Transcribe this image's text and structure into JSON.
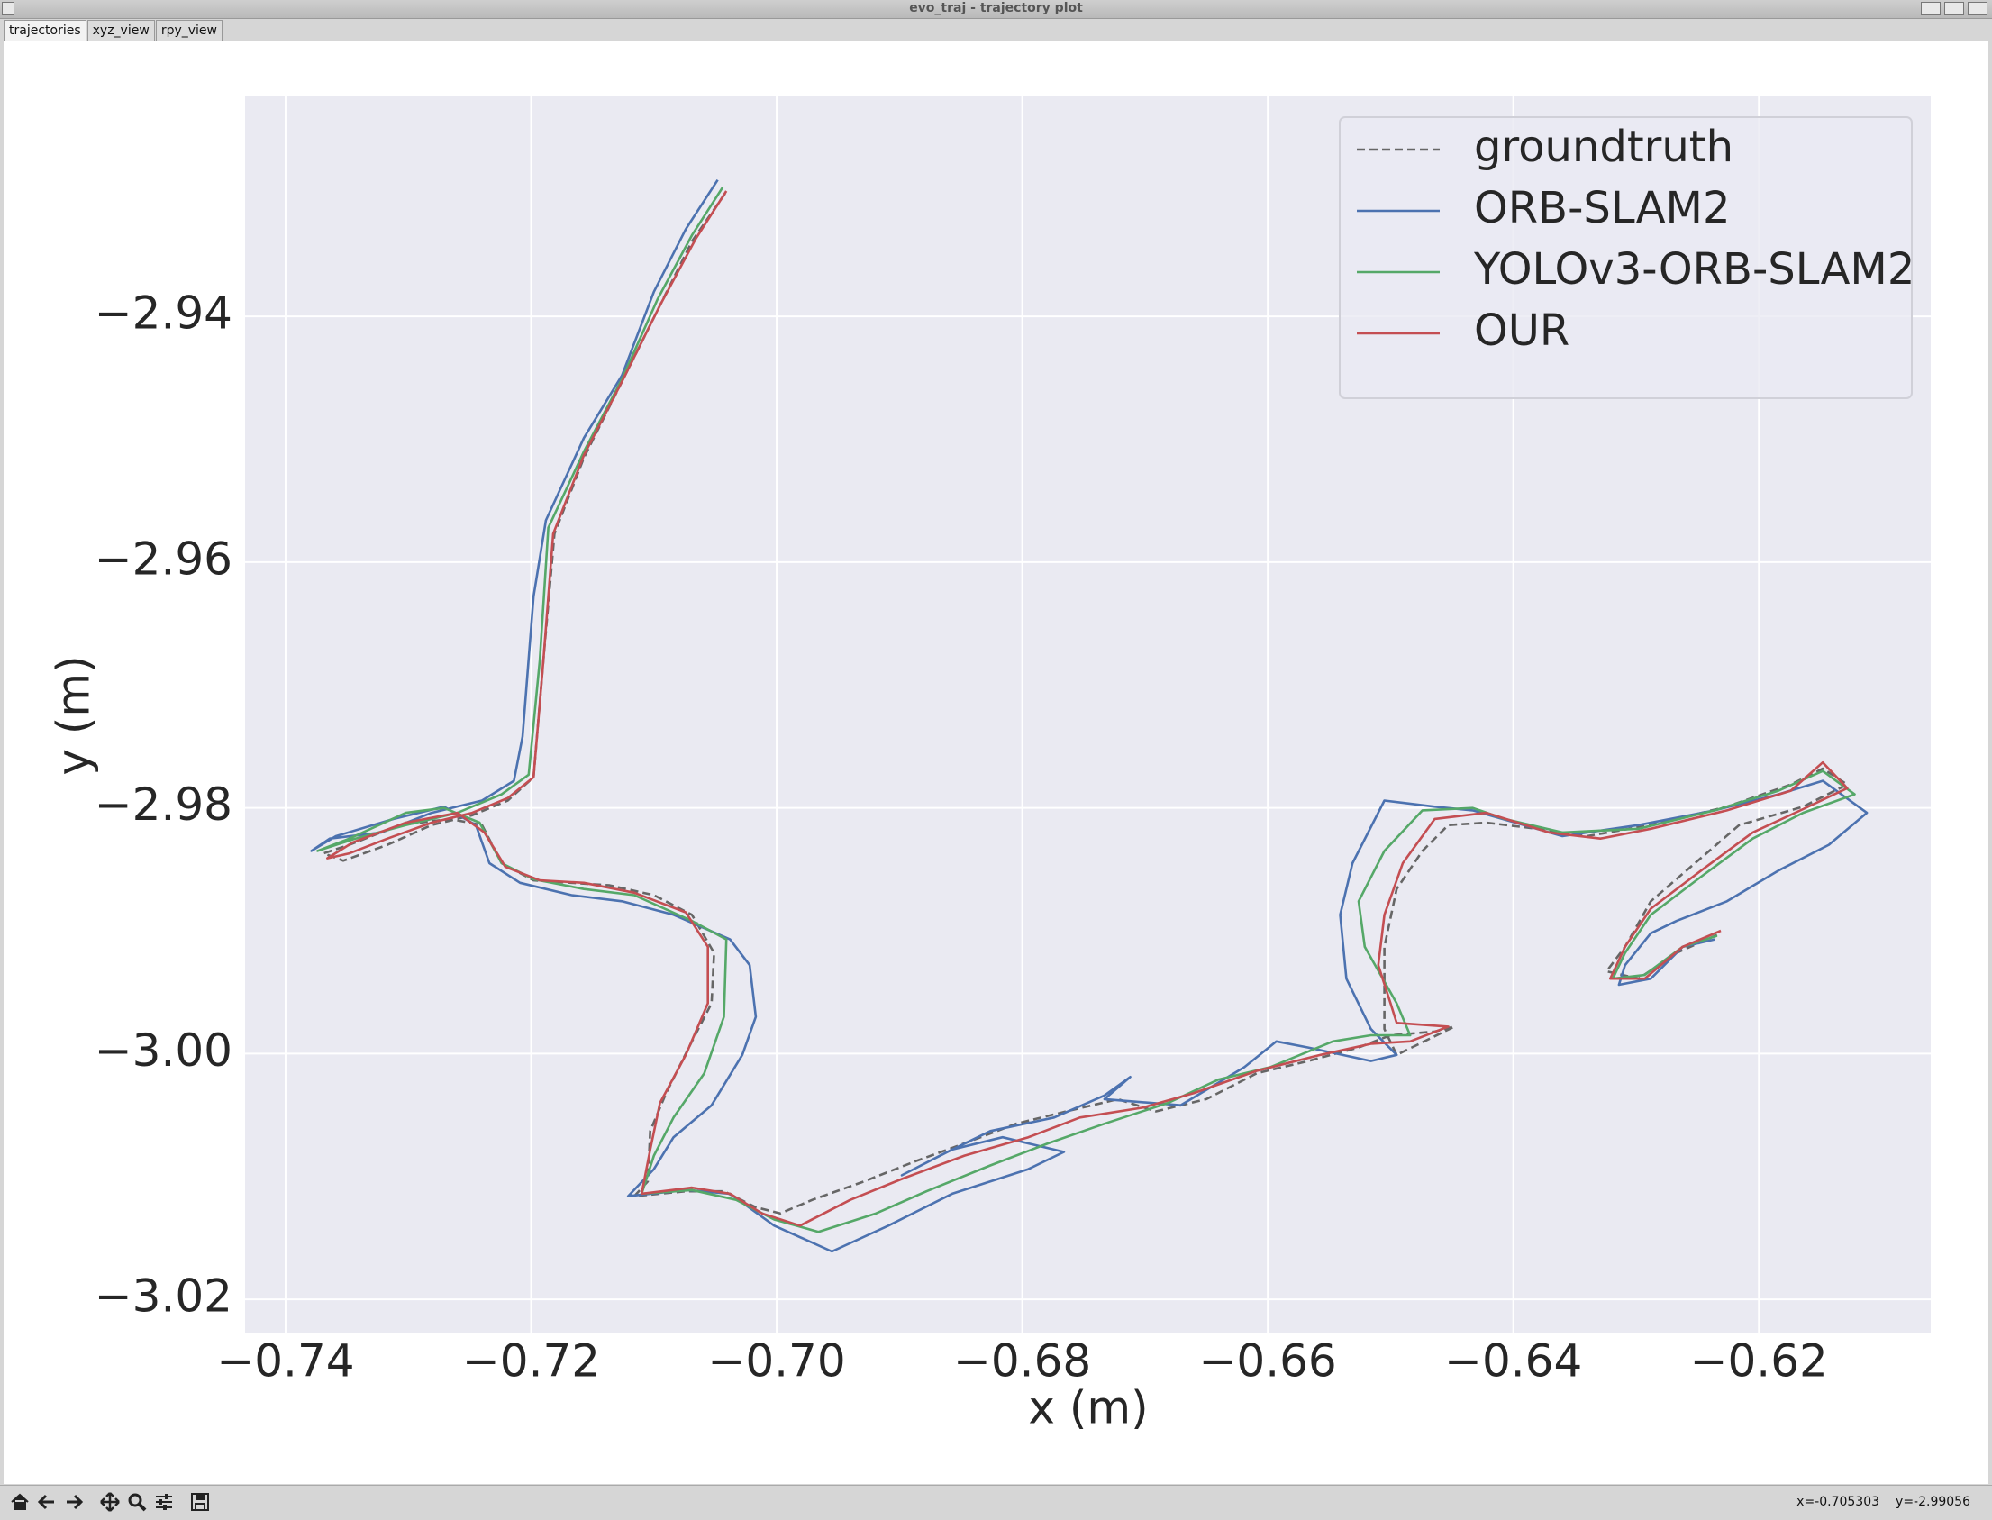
{
  "window": {
    "title": "evo_traj - trajectory plot",
    "tabs": [
      "trajectories",
      "xyz_view",
      "rpy_view"
    ],
    "status": [
      "x=-0.705303",
      "y=-2.99056"
    ]
  },
  "chart_data": {
    "type": "line",
    "xlabel": "x (m)",
    "ylabel": "y (m)",
    "xlim": [
      -0.7433,
      -0.606
    ],
    "ylim": [
      -3.0227,
      -2.9221
    ],
    "xticks": [
      {
        "value": -0.74,
        "label": "−0.74"
      },
      {
        "value": -0.72,
        "label": "−0.72"
      },
      {
        "value": -0.7,
        "label": "−0.70"
      },
      {
        "value": -0.68,
        "label": "−0.68"
      },
      {
        "value": -0.66,
        "label": "−0.66"
      },
      {
        "value": -0.64,
        "label": "−0.64"
      },
      {
        "value": -0.62,
        "label": "−0.62"
      }
    ],
    "yticks": [
      {
        "value": -2.94,
        "label": "−2.94"
      },
      {
        "value": -2.96,
        "label": "−2.96"
      },
      {
        "value": -2.98,
        "label": "−2.98"
      },
      {
        "value": -3.0,
        "label": "−3.00"
      },
      {
        "value": -3.02,
        "label": "−3.02"
      }
    ],
    "grid": true,
    "legend": "upper right",
    "series": [
      {
        "name": "groundtruth",
        "color": "#666666",
        "linestyle": "dashed",
        "x": [
          -0.7042,
          -0.7069,
          -0.7095,
          -0.7126,
          -0.7157,
          -0.7181,
          -0.719,
          -0.7198,
          -0.7219,
          -0.7248,
          -0.7281,
          -0.7317,
          -0.7353,
          -0.7369,
          -0.7348,
          -0.7307,
          -0.7266,
          -0.724,
          -0.7224,
          -0.7198,
          -0.7167,
          -0.7136,
          -0.71,
          -0.7069,
          -0.7051,
          -0.7053,
          -0.7069,
          -0.709,
          -0.7103,
          -0.7105,
          -0.7116,
          -0.7074,
          -0.7043,
          -0.7017,
          -0.6997,
          -0.6971,
          -0.6929,
          -0.6888,
          -0.6847,
          -0.6805,
          -0.6764,
          -0.6722,
          -0.6691,
          -0.665,
          -0.6609,
          -0.6567,
          -0.6526,
          -0.65,
          -0.6464,
          -0.6448,
          -0.6495,
          -0.6505,
          -0.6505,
          -0.6495,
          -0.6474,
          -0.6453,
          -0.6422,
          -0.6381,
          -0.634,
          -0.6288,
          -0.6226,
          -0.6174,
          -0.6148,
          -0.6128,
          -0.6164,
          -0.6216,
          -0.6252,
          -0.6288,
          -0.6309,
          -0.6324,
          -0.6298,
          -0.6267,
          -0.6231
        ],
        "values": [
          -2.93,
          -2.9339,
          -2.9391,
          -2.9453,
          -2.9515,
          -2.9577,
          -2.968,
          -2.9775,
          -2.9794,
          -2.9806,
          -2.9814,
          -2.983,
          -2.9843,
          -2.9837,
          -2.983,
          -2.9814,
          -2.9809,
          -2.9814,
          -2.9845,
          -2.9859,
          -2.9861,
          -2.9863,
          -2.9871,
          -2.9887,
          -2.9918,
          -2.9959,
          -2.999,
          -3.0032,
          -3.0063,
          -3.0104,
          -3.0116,
          -3.0112,
          -3.0112,
          -3.0125,
          -3.013,
          -3.0119,
          -3.0104,
          -3.0088,
          -3.0073,
          -3.0057,
          -3.0047,
          -3.0037,
          -3.0047,
          -3.0037,
          -3.0016,
          -3.0006,
          -2.9995,
          -2.9985,
          -2.9982,
          -2.9978,
          -3.0001,
          -2.998,
          -2.9913,
          -2.9866,
          -2.9835,
          -2.9814,
          -2.9812,
          -2.9817,
          -2.9823,
          -2.9814,
          -2.9799,
          -2.9781,
          -2.9768,
          -2.9781,
          -2.9799,
          -2.9814,
          -2.9845,
          -2.9876,
          -2.9913,
          -2.9933,
          -2.9939,
          -2.9918,
          -2.9902
        ]
      },
      {
        "name": "ORB-SLAM2",
        "color": "#4c72b0",
        "linestyle": "solid",
        "x": [
          -0.7048,
          -0.7074,
          -0.71,
          -0.7126,
          -0.7157,
          -0.7188,
          -0.7198,
          -0.7207,
          -0.7214,
          -0.724,
          -0.7281,
          -0.7322,
          -0.7364,
          -0.7379,
          -0.7359,
          -0.7312,
          -0.7271,
          -0.7245,
          -0.7234,
          -0.7209,
          -0.7167,
          -0.7126,
          -0.7084,
          -0.7038,
          -0.7022,
          -0.7017,
          -0.7028,
          -0.7053,
          -0.7084,
          -0.71,
          -0.7121,
          -0.7074,
          -0.7038,
          -0.7002,
          -0.6955,
          -0.6909,
          -0.6857,
          -0.6795,
          -0.6766,
          -0.6816,
          -0.6857,
          -0.6898,
          -0.6867,
          -0.6826,
          -0.6774,
          -0.6733,
          -0.6712,
          -0.6733,
          -0.6671,
          -0.6619,
          -0.6593,
          -0.6567,
          -0.6516,
          -0.6495,
          -0.6516,
          -0.6536,
          -0.6541,
          -0.6531,
          -0.6505,
          -0.6464,
          -0.6433,
          -0.636,
          -0.6298,
          -0.6236,
          -0.6184,
          -0.6148,
          -0.6112,
          -0.6143,
          -0.6184,
          -0.6226,
          -0.6267,
          -0.6288,
          -0.6309,
          -0.6314,
          -0.6288,
          -0.6262,
          -0.6236
        ],
        "values": [
          -2.9289,
          -2.9329,
          -2.938,
          -2.9448,
          -2.9499,
          -2.9566,
          -2.9628,
          -2.9742,
          -2.9778,
          -2.9794,
          -2.9804,
          -2.982,
          -2.9825,
          -2.9835,
          -2.9823,
          -2.9809,
          -2.9799,
          -2.9814,
          -2.9845,
          -2.9861,
          -2.9871,
          -2.9876,
          -2.9887,
          -2.9907,
          -2.9928,
          -2.997,
          -3.0001,
          -3.0042,
          -3.0068,
          -3.0094,
          -3.0116,
          -3.0111,
          -3.0114,
          -3.014,
          -3.0161,
          -3.014,
          -3.0114,
          -3.0094,
          -3.008,
          -3.0068,
          -3.0078,
          -3.0099,
          -3.0083,
          -3.0063,
          -3.0052,
          -3.0034,
          -3.0019,
          -3.0037,
          -3.0042,
          -3.0011,
          -2.999,
          -2.9995,
          -3.0006,
          -3.0001,
          -2.998,
          -2.9939,
          -2.9887,
          -2.9845,
          -2.9794,
          -2.9799,
          -2.9802,
          -2.9823,
          -2.9814,
          -2.9802,
          -2.9789,
          -2.9778,
          -2.9804,
          -2.983,
          -2.9851,
          -2.9876,
          -2.9892,
          -2.9902,
          -2.9928,
          -2.9944,
          -2.9939,
          -2.9913,
          -2.9907
        ]
      },
      {
        "name": "YOLOv3-ORB-SLAM2",
        "color": "#55a868",
        "linestyle": "solid",
        "x": [
          -0.7044,
          -0.7069,
          -0.7097,
          -0.7126,
          -0.7157,
          -0.7186,
          -0.7193,
          -0.7202,
          -0.7224,
          -0.726,
          -0.7302,
          -0.7343,
          -0.7374,
          -0.7348,
          -0.7302,
          -0.7271,
          -0.7242,
          -0.7224,
          -0.7198,
          -0.7157,
          -0.7116,
          -0.7069,
          -0.7041,
          -0.7043,
          -0.7059,
          -0.7084,
          -0.71,
          -0.711,
          -0.7069,
          -0.7033,
          -0.7002,
          -0.6966,
          -0.6919,
          -0.6878,
          -0.6826,
          -0.6779,
          -0.6733,
          -0.6681,
          -0.664,
          -0.6598,
          -0.6547,
          -0.6516,
          -0.6484,
          -0.6495,
          -0.6521,
          -0.6526,
          -0.6505,
          -0.6474,
          -0.6433,
          -0.6407,
          -0.636,
          -0.6298,
          -0.6236,
          -0.6184,
          -0.6148,
          -0.6122,
          -0.6164,
          -0.6205,
          -0.6247,
          -0.6288,
          -0.6309,
          -0.6319,
          -0.6293,
          -0.6262,
          -0.6234
        ],
        "values": [
          -2.9295,
          -2.9334,
          -2.9386,
          -2.9451,
          -2.951,
          -2.9572,
          -2.968,
          -2.9773,
          -2.9789,
          -2.9804,
          -2.9814,
          -2.9825,
          -2.9835,
          -2.9825,
          -2.9804,
          -2.98,
          -2.9812,
          -2.9845,
          -2.9858,
          -2.9866,
          -2.9871,
          -2.9892,
          -2.9907,
          -2.997,
          -3.0016,
          -3.0052,
          -3.0083,
          -3.0114,
          -3.0111,
          -3.0119,
          -3.0135,
          -3.0145,
          -3.013,
          -3.0112,
          -3.0091,
          -3.0073,
          -3.0057,
          -3.004,
          -3.0021,
          -3.0011,
          -2.999,
          -2.9985,
          -2.9985,
          -2.9959,
          -2.9913,
          -2.9876,
          -2.9835,
          -2.9802,
          -2.98,
          -2.9809,
          -2.982,
          -2.9817,
          -2.9802,
          -2.9786,
          -2.977,
          -2.9789,
          -2.9804,
          -2.9825,
          -2.9856,
          -2.9887,
          -2.9918,
          -2.9939,
          -2.9936,
          -2.9913,
          -2.9904
        ]
      },
      {
        "name": "OUR",
        "color": "#c44e52",
        "linestyle": "solid",
        "x": [
          -0.7041,
          -0.7066,
          -0.7095,
          -0.7126,
          -0.7157,
          -0.7182,
          -0.719,
          -0.7198,
          -0.7219,
          -0.7248,
          -0.7281,
          -0.7317,
          -0.7348,
          -0.7366,
          -0.7345,
          -0.7302,
          -0.726,
          -0.7238,
          -0.7221,
          -0.7193,
          -0.7157,
          -0.7116,
          -0.7074,
          -0.7056,
          -0.7056,
          -0.7074,
          -0.7095,
          -0.7103,
          -0.711,
          -0.7069,
          -0.7038,
          -0.7012,
          -0.6981,
          -0.694,
          -0.6898,
          -0.6847,
          -0.6795,
          -0.6753,
          -0.6702,
          -0.666,
          -0.6609,
          -0.6557,
          -0.6516,
          -0.6484,
          -0.6453,
          -0.6495,
          -0.65,
          -0.651,
          -0.6505,
          -0.649,
          -0.6464,
          -0.6422,
          -0.6371,
          -0.6329,
          -0.6288,
          -0.6226,
          -0.6174,
          -0.6148,
          -0.6128,
          -0.6164,
          -0.6205,
          -0.6247,
          -0.6288,
          -0.6309,
          -0.6321,
          -0.6293,
          -0.6262,
          -0.6231
        ],
        "values": [
          -2.9298,
          -2.9337,
          -2.9391,
          -2.9453,
          -2.9513,
          -2.9577,
          -2.968,
          -2.9775,
          -2.9792,
          -2.9804,
          -2.9812,
          -2.9825,
          -2.9837,
          -2.9841,
          -2.9828,
          -2.9812,
          -2.9804,
          -2.982,
          -2.9848,
          -2.9859,
          -2.9861,
          -2.9869,
          -2.9885,
          -2.9913,
          -2.9959,
          -3.0001,
          -3.004,
          -3.0078,
          -3.0114,
          -3.0109,
          -3.0114,
          -3.013,
          -3.014,
          -3.0119,
          -3.0102,
          -3.0083,
          -3.0068,
          -3.0052,
          -3.0044,
          -3.0032,
          -3.0014,
          -3.0001,
          -2.9992,
          -2.999,
          -2.9978,
          -2.9975,
          -2.9959,
          -2.9928,
          -2.9887,
          -2.9845,
          -2.9809,
          -2.9804,
          -2.982,
          -2.9825,
          -2.9817,
          -2.9802,
          -2.9786,
          -2.9763,
          -2.9784,
          -2.9801,
          -2.982,
          -2.9851,
          -2.9882,
          -2.9913,
          -2.9939,
          -2.9939,
          -2.9913,
          -2.99
        ]
      }
    ]
  }
}
